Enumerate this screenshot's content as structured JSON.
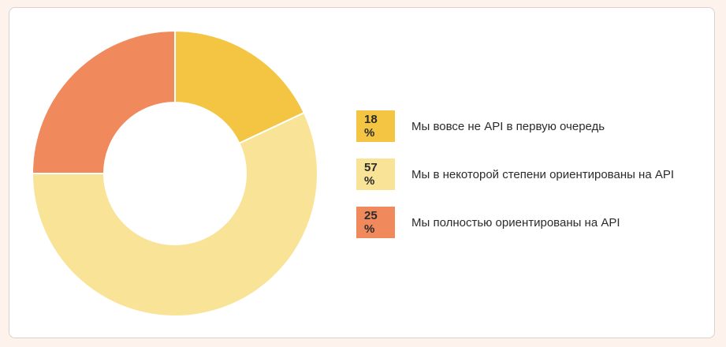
{
  "chart_data": {
    "type": "pie",
    "variant": "donut",
    "title": "",
    "legend_position": "right",
    "series": [
      {
        "name": "Мы вовсе не API в первую очередь",
        "value": 18,
        "value_label": "18",
        "unit": "%",
        "color": "#f4c542"
      },
      {
        "name": "Мы в некоторой степени ориентированы на API",
        "value": 57,
        "value_label": "57",
        "unit": "%",
        "color": "#f9e397"
      },
      {
        "name": "Мы полностью ориентированы на API",
        "value": 25,
        "value_label": "25",
        "unit": "%",
        "color": "#f0895c"
      }
    ]
  }
}
